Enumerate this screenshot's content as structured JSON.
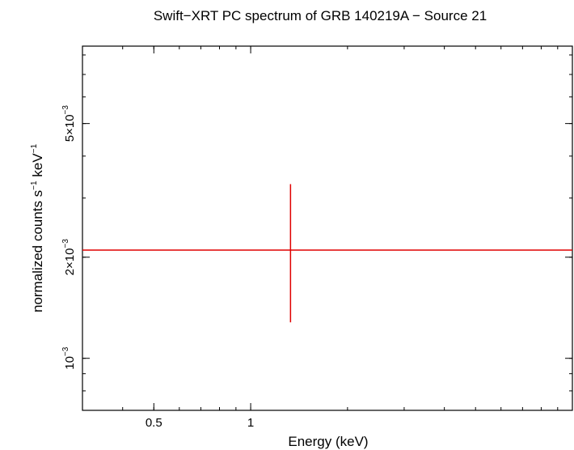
{
  "chart_data": {
    "type": "scatter",
    "title": "Swift−XRT PC spectrum of GRB 140219A − Source 21",
    "xlabel": "Energy (keV)",
    "ylabel": {
      "pre": "normalized counts s",
      "sup1": "−1",
      "mid": " keV",
      "sup2": "−1"
    },
    "x_scale": "log",
    "y_scale": "log",
    "xlim": [
      0.3,
      10
    ],
    "ylim": [
      0.0007,
      0.0085
    ],
    "x_ticks": [
      {
        "value": 0.5,
        "label": "0.5"
      },
      {
        "value": 1,
        "label": "1"
      }
    ],
    "y_ticks": [
      {
        "value": 0.001,
        "base": "10",
        "exp": "−3"
      },
      {
        "value": 0.002,
        "base": "2×10",
        "exp": "−3"
      },
      {
        "value": 0.005,
        "base": "5×10",
        "exp": "−3"
      }
    ],
    "grid": false,
    "series": [
      {
        "color": "#e00000",
        "points": [
          {
            "x": 1.33,
            "x_low": 0.3,
            "x_high": 10,
            "y": 0.0021,
            "y_low": 0.00128,
            "y_high": 0.0033
          }
        ]
      }
    ]
  }
}
